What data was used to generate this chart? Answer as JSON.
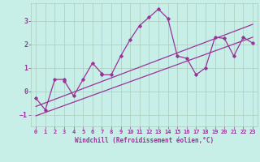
{
  "xlabel": "Windchill (Refroidissement éolien,°C)",
  "bg_color": "#c8eee8",
  "grid_color": "#aaccbb",
  "line_color": "#993399",
  "xlim": [
    -0.5,
    23.5
  ],
  "ylim": [
    -1.5,
    3.75
  ],
  "xticks": [
    0,
    1,
    2,
    3,
    4,
    5,
    6,
    7,
    8,
    9,
    10,
    11,
    12,
    13,
    14,
    15,
    16,
    17,
    18,
    19,
    20,
    21,
    22,
    23
  ],
  "yticks": [
    -1,
    0,
    1,
    2,
    3
  ],
  "scatter_x": [
    0,
    1,
    2,
    3,
    3,
    4,
    5,
    6,
    7,
    7,
    8,
    9,
    10,
    11,
    12,
    13,
    14,
    15,
    16,
    17,
    18,
    19,
    20,
    21,
    22,
    23
  ],
  "scatter_y": [
    -0.3,
    -0.8,
    0.5,
    0.5,
    0.45,
    -0.2,
    0.5,
    1.2,
    0.75,
    0.7,
    0.7,
    1.5,
    2.2,
    2.8,
    3.15,
    3.5,
    3.1,
    1.5,
    1.4,
    0.7,
    1.0,
    2.3,
    2.25,
    1.5,
    2.3,
    2.05
  ],
  "line1_x": [
    0,
    23
  ],
  "line1_y": [
    -1.05,
    2.3
  ],
  "line2_x": [
    0,
    23
  ],
  "line2_y": [
    -0.65,
    2.85
  ]
}
